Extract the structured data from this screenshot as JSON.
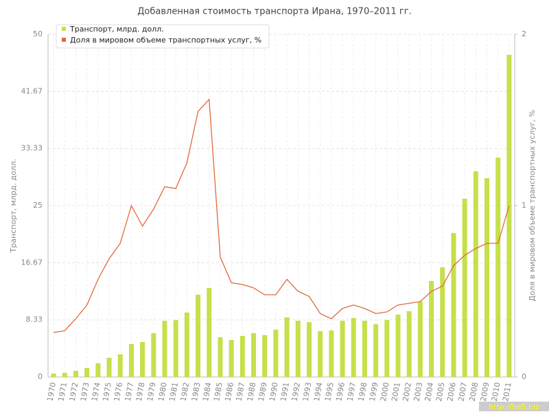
{
  "chart_data": {
    "type": "bar-line",
    "title": "Добавленная стоимость транспорта Ирана, 1970–2011 гг.",
    "y_label": "Транспорт, млрд. долл.",
    "y2_label": "Доля в мировом объеме транспортных услуг, %",
    "watermark": "http://be5.biz",
    "categories": [
      "1970",
      "1971",
      "1972",
      "1973",
      "1974",
      "1975",
      "1976",
      "1977",
      "1978",
      "1979",
      "1980",
      "1981",
      "1982",
      "1983",
      "1984",
      "1985",
      "1986",
      "1987",
      "1988",
      "1989",
      "1990",
      "1991",
      "1992",
      "1993",
      "1994",
      "1995",
      "1996",
      "1997",
      "1998",
      "1999",
      "2000",
      "2001",
      "2002",
      "2003",
      "2004",
      "2005",
      "2006",
      "2007",
      "2008",
      "2009",
      "2010",
      "2011"
    ],
    "series": [
      {
        "name": "Транспорт, млрд. долл.",
        "type": "bar",
        "color": "#c5e04a",
        "values": [
          0.5,
          0.6,
          0.9,
          1.3,
          2.0,
          2.8,
          3.3,
          4.8,
          5.1,
          6.4,
          8.2,
          8.3,
          9.4,
          12.0,
          13.0,
          5.8,
          5.4,
          6.0,
          6.4,
          6.1,
          6.9,
          8.7,
          8.2,
          8.0,
          6.7,
          6.8,
          8.2,
          8.6,
          8.2,
          7.7,
          8.3,
          9.1,
          9.6,
          11.0,
          14.0,
          16.0,
          21.0,
          26.0,
          30.0,
          29.0,
          32.0,
          47.0
        ]
      },
      {
        "name": "Доля в мировом объеме транспортных услуг, %",
        "type": "line",
        "axis": "y2",
        "color": "#e0693a",
        "values": [
          0.26,
          0.27,
          0.34,
          0.42,
          0.57,
          0.69,
          0.78,
          1.0,
          0.88,
          0.98,
          1.11,
          1.1,
          1.25,
          1.55,
          1.62,
          0.7,
          0.55,
          0.54,
          0.52,
          0.48,
          0.48,
          0.57,
          0.5,
          0.47,
          0.37,
          0.34,
          0.4,
          0.42,
          0.4,
          0.37,
          0.38,
          0.42,
          0.43,
          0.44,
          0.5,
          0.53,
          0.65,
          0.71,
          0.75,
          0.78,
          0.78,
          1.0
        ]
      }
    ],
    "ylim": [
      0,
      50
    ],
    "yticks": [
      0,
      8.33,
      16.67,
      25,
      33.33,
      41.67,
      50
    ],
    "y2lim": [
      0,
      2
    ],
    "y2ticks": [
      0,
      1,
      2
    ],
    "grid": true,
    "legend": "top-left"
  }
}
